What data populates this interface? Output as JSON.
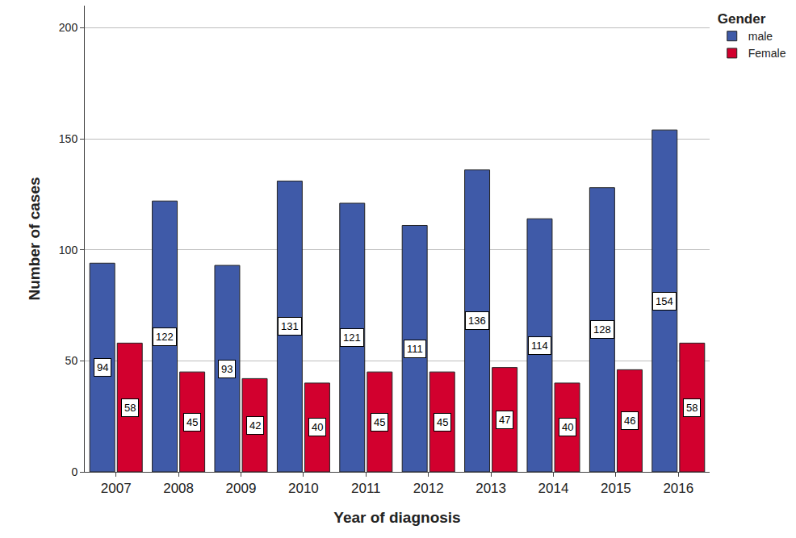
{
  "chart_data": {
    "type": "bar",
    "xlabel": "Year of diagnosis",
    "ylabel": "Number of cases",
    "categories": [
      "2007",
      "2008",
      "2009",
      "2010",
      "2011",
      "2012",
      "2013",
      "2014",
      "2015",
      "2016"
    ],
    "series": [
      {
        "name": "male",
        "color": "#3f5aa8",
        "values": [
          94,
          122,
          93,
          131,
          121,
          111,
          136,
          114,
          128,
          154
        ]
      },
      {
        "name": "Female",
        "color": "#d2002e",
        "values": [
          58,
          45,
          42,
          40,
          45,
          45,
          47,
          40,
          46,
          58
        ]
      }
    ],
    "ylim": [
      0,
      210
    ],
    "yticks": [
      0,
      50,
      100,
      150,
      200
    ],
    "grid": true,
    "legend": "top right",
    "legend_title": "Gender",
    "data_labels": true
  }
}
